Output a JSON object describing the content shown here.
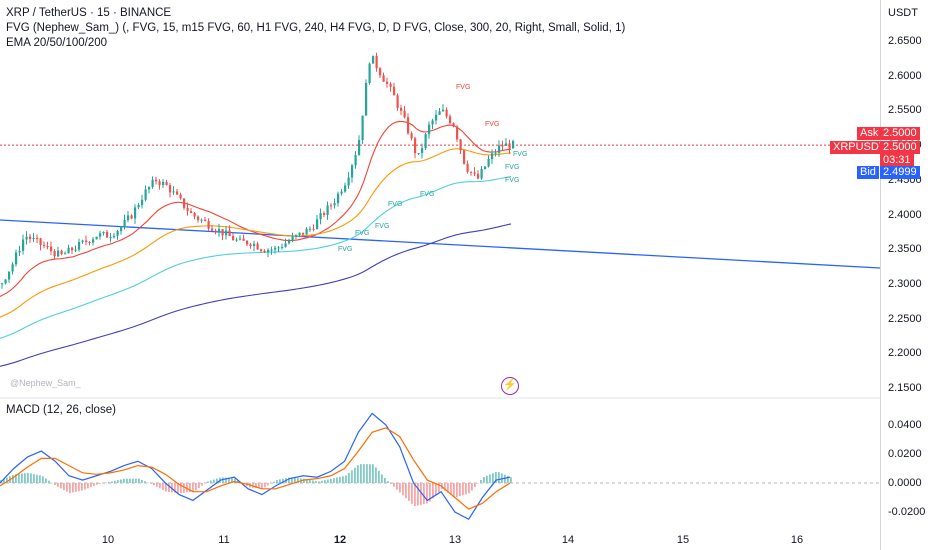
{
  "header": {
    "title": "XRP / TetherUS · 15 · BINANCE",
    "indicator_fvg": "FVG (Nephew_Sam_) (, FVG, 15, m15 FVG, 60, H1 FVG, 240, H4 FVG, D, D FVG, Close, 300, 20, Right, Small, Solid, 1)",
    "indicator_ema": "EMA 20/50/100/200"
  },
  "macd": {
    "label": "MACD (12, 26, close)"
  },
  "watermark": "@Nephew_Sam_",
  "axis": {
    "currency": "USDT",
    "price_ticks": [
      "2.6500",
      "2.6000",
      "2.5500",
      "2.5000",
      "2.4500",
      "2.4000",
      "2.3500",
      "2.3000",
      "2.2500",
      "2.2000",
      "2.1500"
    ],
    "macd_ticks": [
      "0.0400",
      "0.0200",
      "0.0000",
      "-0.0200"
    ],
    "dates": [
      "10",
      "11",
      "12",
      "13",
      "14",
      "15",
      "16"
    ],
    "bold_dates": [
      "12"
    ]
  },
  "tags": {
    "ask_label": "Ask",
    "ask_value": "2.5000",
    "symbol_label": "XRPUSDT",
    "symbol_value": "2.5000",
    "countdown": "03:31",
    "bid_label": "Bid",
    "bid_value": "2.4999"
  },
  "fvg_labels": [
    "FVG",
    "FVG",
    "FVG",
    "FVG",
    "FVG",
    "FVG",
    "FVG",
    "FVG",
    "FVG",
    "FVG"
  ],
  "colors": {
    "up": "#26a69a",
    "down": "#ef5350",
    "ema20": "#f44336",
    "ema50": "#ff9800",
    "ema100": "#4dd0e1",
    "ema200": "#3f3fbf",
    "trendline": "#2962ff",
    "macd": "#2962ff",
    "signal": "#ff6d00",
    "ask": "#f23645",
    "bid": "#2962ff"
  },
  "chart_data": [
    {
      "type": "candlestick",
      "title": "XRP / TetherUS · 15 · BINANCE",
      "ylim": [
        2.15,
        2.66
      ],
      "x_ticks": [
        "10",
        "11",
        "12",
        "13",
        "14",
        "15",
        "16"
      ],
      "price_trend_close": [
        2.3,
        2.33,
        2.37,
        2.36,
        2.35,
        2.34,
        2.35,
        2.36,
        2.37,
        2.37,
        2.38,
        2.4,
        2.43,
        2.45,
        2.44,
        2.42,
        2.4,
        2.39,
        2.38,
        2.37,
        2.36,
        2.36,
        2.35,
        2.35,
        2.36,
        2.37,
        2.38,
        2.4,
        2.42,
        2.45,
        2.5,
        2.63,
        2.6,
        2.57,
        2.53,
        2.48,
        2.53,
        2.55,
        2.53,
        2.47,
        2.45,
        2.48,
        2.5,
        2.5
      ],
      "series": [
        {
          "name": "EMA 20/50/100/200"
        }
      ],
      "last_price": 2.5,
      "ask": 2.5,
      "bid": 2.4999
    },
    {
      "type": "line",
      "title": "MACD (12, 26, close)",
      "ylim": [
        -0.025,
        0.05
      ],
      "macd_values": [
        0.0,
        0.01,
        0.018,
        0.022,
        0.015,
        0.005,
        0.002,
        0.005,
        0.008,
        0.012,
        0.015,
        0.01,
        0.0,
        -0.008,
        -0.012,
        -0.005,
        0.002,
        0.004,
        -0.004,
        -0.008,
        -0.002,
        0.003,
        0.005,
        0.004,
        0.008,
        0.015,
        0.035,
        0.048,
        0.04,
        0.025,
        0.0,
        -0.012,
        -0.006,
        -0.02,
        -0.025,
        -0.01,
        0.002,
        0.004
      ],
      "signal_values": [
        -0.002,
        0.004,
        0.011,
        0.017,
        0.017,
        0.012,
        0.007,
        0.006,
        0.007,
        0.009,
        0.012,
        0.011,
        0.006,
        -0.001,
        -0.006,
        -0.006,
        -0.002,
        0.001,
        -0.001,
        -0.004,
        -0.004,
        -0.001,
        0.002,
        0.003,
        0.005,
        0.01,
        0.022,
        0.035,
        0.038,
        0.032,
        0.016,
        0.002,
        -0.002,
        -0.01,
        -0.018,
        -0.014,
        -0.006,
        0.0
      ]
    }
  ]
}
